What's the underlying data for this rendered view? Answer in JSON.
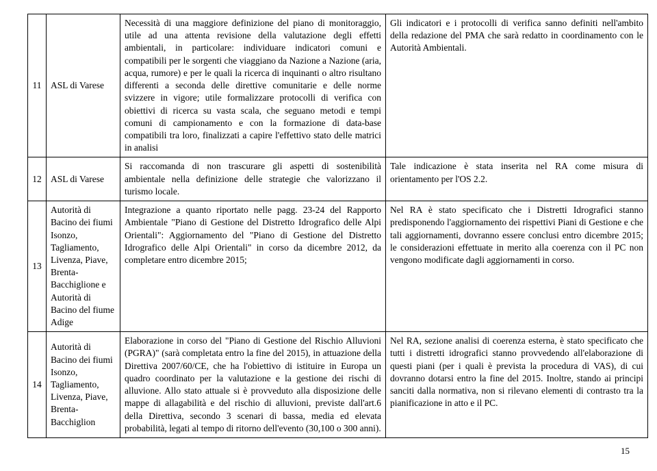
{
  "rows": [
    {
      "num": "11",
      "ente": "ASL di Varese",
      "c3": "Necessità di una maggiore definizione del piano di monitoraggio, utile ad una attenta revisione della valutazione degli effetti ambientali, in particolare: individuare indicatori comuni e compatibili per le sorgenti che viaggiano da Nazione a Nazione (aria, acqua, rumore) e per le quali la ricerca di inquinanti o altro risultano differenti a seconda delle direttive comunitarie e delle norme svizzere in vigore; utile formalizzare protocolli di verifica con obiettivi di ricerca su vasta scala, che seguano metodi e tempi comuni di campionamento e con la formazione di data-base compatibili tra loro, finalizzati a capire l'effettivo stato delle matrici in analisi",
      "c4": "Gli indicatori e i protocolli di verifica sanno definiti nell'ambito della redazione del PMA che sarà redatto in coordinamento con le Autorità Ambientali."
    },
    {
      "num": "12",
      "ente": "ASL di Varese",
      "c3": "Si raccomanda di non trascurare gli aspetti di sostenibilità ambientale nella definizione delle strategie che valorizzano il turismo locale.",
      "c4": "Tale indicazione è stata inserita nel RA come misura di orientamento per l'OS 2.2."
    },
    {
      "num": "13",
      "ente": "Autorità di Bacino dei fiumi Isonzo, Tagliamento, Livenza, Piave, Brenta-Bacchiglione e Autorità di Bacino del fiume Adige",
      "c3": "Integrazione a quanto riportato nelle pagg. 23-24 del Rapporto Ambientale \"Piano di Gestione del Distretto Idrografico delle Alpi Orientali\": Aggiornamento del \"Piano di Gestione del Distretto Idrografico delle Alpi Orientali\" in corso da dicembre 2012, da completare entro dicembre 2015;",
      "c4": "Nel RA è stato specificato che i Distretti Idrografici stanno predisponendo l'aggiornamento dei rispettivi Piani di Gestione e che tali aggiornamenti, dovranno essere conclusi entro dicembre 2015; le considerazioni effettuate in merito alla coerenza con il PC non vengono modificate dagli aggiornamenti in corso."
    },
    {
      "num": "14",
      "ente": "Autorità di Bacino dei fiumi Isonzo, Tagliamento, Livenza, Piave, Brenta-Bacchiglion",
      "c3": "Elaborazione in corso del \"Piano di Gestione del Rischio Alluvioni (PGRA)\" (sarà completata entro la fine del 2015), in attuazione della Direttiva 2007/60/CE, che ha l'obiettivo di istituire in Europa un quadro coordinato per la valutazione e la gestione dei rischi di alluvione. Allo stato attuale si è provveduto alla disposizione delle mappe di allagabilità e del rischio di alluvioni, previste dall'art.6 della Direttiva, secondo 3 scenari di bassa, media ed elevata probabilità, legati al tempo di ritorno dell'evento (30,100 o 300 anni).",
      "c4": "Nel RA, sezione analisi di coerenza esterna, è stato specificato che tutti i distretti idrografici stanno provvedendo all'elaborazione di questi piani (per i quali è prevista la procedura di VAS), di cui dovranno dotarsi entro la fine del 2015. Inoltre, stando ai principi sanciti dalla normativa, non si rilevano elementi di contrasto tra la pianificazione in atto e il PC."
    }
  ],
  "pagenum": "15"
}
